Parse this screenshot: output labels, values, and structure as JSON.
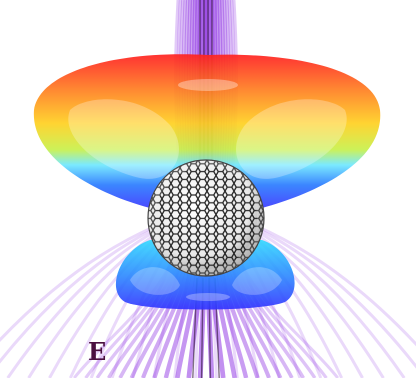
{
  "panel": {
    "label": "E"
  },
  "colors": {
    "background": "#ffffff",
    "field_lines": "#8a2be2",
    "field_line_core": "#2a1030",
    "label": "#4a1040",
    "lobe_gradient": [
      "#ff1a1a",
      "#ff8a1a",
      "#ffd21a",
      "#c8ff4a",
      "#5fe0ff",
      "#2a7bff",
      "#3b3bff"
    ],
    "sphere_fill": "#ffffff",
    "sphere_pattern": "#111111"
  },
  "icons": {
    "sphere": "hexagon-lattice-sphere-icon",
    "upper_lobe": "upper-radiation-lobe-icon",
    "lower_lobe": "lower-radiation-lobe-icon"
  }
}
